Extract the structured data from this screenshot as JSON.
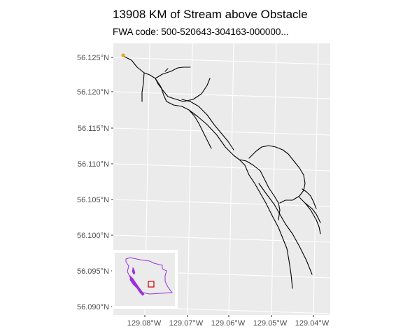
{
  "title": "13908 KM of Stream above Obstacle",
  "subtitle": "FWA code: 500-520643-304163-000000...",
  "map": {
    "panel_background": "#ebebeb",
    "grid_color": "#ffffff",
    "stream_color": "#000000",
    "obstacle_color": "#e6a817",
    "y_axis_labels": [
      "56.125°N",
      "56.120°N",
      "56.115°N",
      "56.110°N",
      "56.105°N",
      "56.100°N",
      "56.095°N",
      "56.090°N"
    ],
    "x_axis_labels": [
      "129.08°W",
      "129.07°W",
      "129.06°W",
      "129.05°W",
      "129.04°W"
    ]
  },
  "inset": {
    "description_icon": "bc-province-outline-icon",
    "outline_color": "#9b30d9",
    "locator_box_color": "#cc0000"
  }
}
